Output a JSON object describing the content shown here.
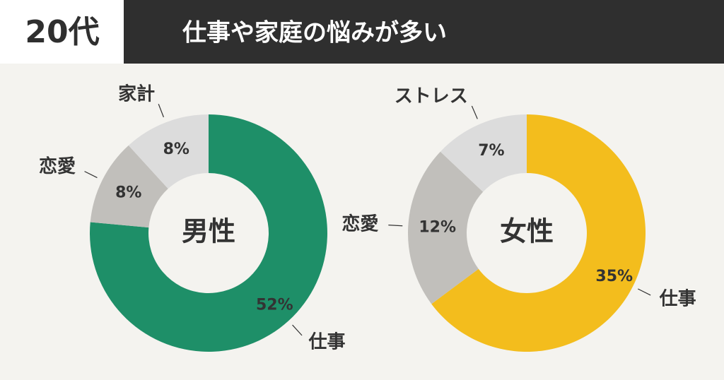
{
  "header": {
    "badge": "20代",
    "title": "仕事や家庭の悩みが多い"
  },
  "chart_data": [
    {
      "type": "pie",
      "title": "男性",
      "categories": [
        "仕事",
        "恋愛",
        "家計"
      ],
      "values": [
        52,
        8,
        8
      ],
      "value_labels": [
        "52%",
        "8%",
        "8%"
      ],
      "colors": [
        "#1e8f68",
        "#c1bfbb",
        "#dcdcdc"
      ]
    },
    {
      "type": "pie",
      "title": "女性",
      "categories": [
        "仕事",
        "恋愛",
        "ストレス"
      ],
      "values": [
        35,
        12,
        7
      ],
      "value_labels": [
        "35%",
        "12%",
        "7%"
      ],
      "colors": [
        "#f3bd1d",
        "#c1bfbb",
        "#dcdcdc"
      ]
    }
  ]
}
